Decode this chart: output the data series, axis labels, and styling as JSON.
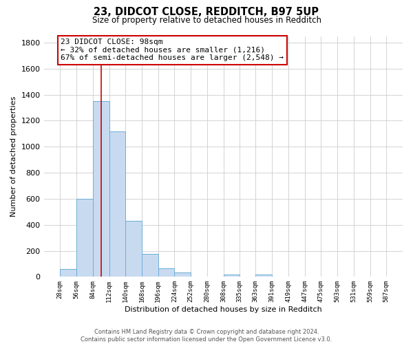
{
  "title1": "23, DIDCOT CLOSE, REDDITCH, B97 5UP",
  "title2": "Size of property relative to detached houses in Redditch",
  "xlabel": "Distribution of detached houses by size in Redditch",
  "ylabel": "Number of detached properties",
  "bin_left_edges": [
    28,
    56,
    84,
    112,
    140,
    168,
    196,
    224,
    252,
    280,
    308,
    335,
    363
  ],
  "bin_counts": [
    60,
    600,
    1350,
    1120,
    430,
    175,
    65,
    35,
    0,
    0,
    20,
    0,
    20
  ],
  "bar_color": "#c8daf0",
  "bar_edge_color": "#6baed6",
  "property_line_x": 98,
  "property_line_color": "#cc0000",
  "annotation_line1": "23 DIDCOT CLOSE: 98sqm",
  "annotation_line2": "← 32% of detached houses are smaller (1,216)",
  "annotation_line3": "67% of semi-detached houses are larger (2,548) →",
  "annotation_box_color": "white",
  "annotation_box_edge_color": "#cc0000",
  "ylim": [
    0,
    1850
  ],
  "xlim_min": 0,
  "xlim_max": 615,
  "bin_width": 28,
  "tick_positions": [
    28,
    56,
    84,
    112,
    140,
    168,
    196,
    224,
    252,
    280,
    308,
    335,
    363,
    391,
    419,
    447,
    475,
    503,
    531,
    559,
    587
  ],
  "tick_labels": [
    "28sqm",
    "56sqm",
    "84sqm",
    "112sqm",
    "140sqm",
    "168sqm",
    "196sqm",
    "224sqm",
    "252sqm",
    "280sqm",
    "308sqm",
    "335sqm",
    "363sqm",
    "391sqm",
    "419sqm",
    "447sqm",
    "475sqm",
    "503sqm",
    "531sqm",
    "559sqm",
    "587sqm"
  ],
  "ytick_vals": [
    0,
    200,
    400,
    600,
    800,
    1000,
    1200,
    1400,
    1600,
    1800
  ],
  "footer_text": "Contains HM Land Registry data © Crown copyright and database right 2024.\nContains public sector information licensed under the Open Government Licence v3.0.",
  "background_color": "#ffffff",
  "grid_color": "#cccccc"
}
